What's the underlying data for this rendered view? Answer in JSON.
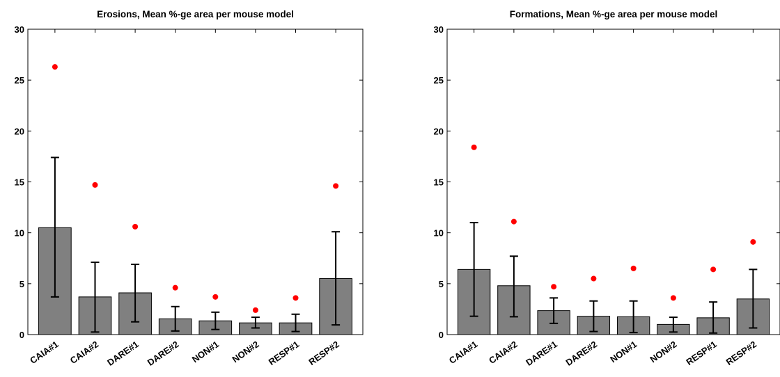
{
  "chart_data": [
    {
      "type": "bar",
      "title": "Erosions, Mean %-ge area per mouse model",
      "xlabel": "",
      "ylabel": "",
      "ylim": [
        0,
        30
      ],
      "yticks": [
        0,
        5,
        10,
        15,
        20,
        25,
        30
      ],
      "categories": [
        "CAIA#1",
        "CAIA#2",
        "DARE#1",
        "DARE#2",
        "NON#1",
        "NON#2",
        "RESP#1",
        "RESP#2"
      ],
      "values": [
        10.5,
        3.7,
        4.1,
        1.55,
        1.35,
        1.15,
        1.15,
        5.5
      ],
      "error_low": [
        3.7,
        0.25,
        1.25,
        0.35,
        0.5,
        0.65,
        0.3,
        0.95
      ],
      "error_high": [
        17.4,
        7.1,
        6.9,
        2.75,
        2.2,
        1.7,
        2.0,
        10.1
      ],
      "max_points": [
        26.3,
        14.7,
        10.6,
        4.6,
        3.7,
        2.4,
        3.6,
        14.6
      ],
      "bar_color": "#808080",
      "point_color": "#ff0000",
      "grid": false
    },
    {
      "type": "bar",
      "title": "Formations, Mean %-ge area per mouse model",
      "xlabel": "",
      "ylabel": "",
      "ylim": [
        0,
        30
      ],
      "yticks": [
        0,
        5,
        10,
        15,
        20,
        25,
        30
      ],
      "categories": [
        "CAIA#1",
        "CAIA#2",
        "DARE#1",
        "DARE#2",
        "NON#1",
        "NON#2",
        "RESP#1",
        "RESP#2"
      ],
      "values": [
        6.4,
        4.8,
        2.35,
        1.8,
        1.75,
        1.0,
        1.65,
        3.5
      ],
      "error_low": [
        1.8,
        1.75,
        1.1,
        0.3,
        0.2,
        0.25,
        0.15,
        0.65
      ],
      "error_high": [
        11.0,
        7.7,
        3.6,
        3.3,
        3.3,
        1.7,
        3.2,
        6.4
      ],
      "max_points": [
        18.4,
        11.1,
        4.7,
        5.5,
        6.5,
        3.6,
        6.4,
        9.1
      ],
      "bar_color": "#808080",
      "point_color": "#ff0000",
      "grid": false
    }
  ]
}
